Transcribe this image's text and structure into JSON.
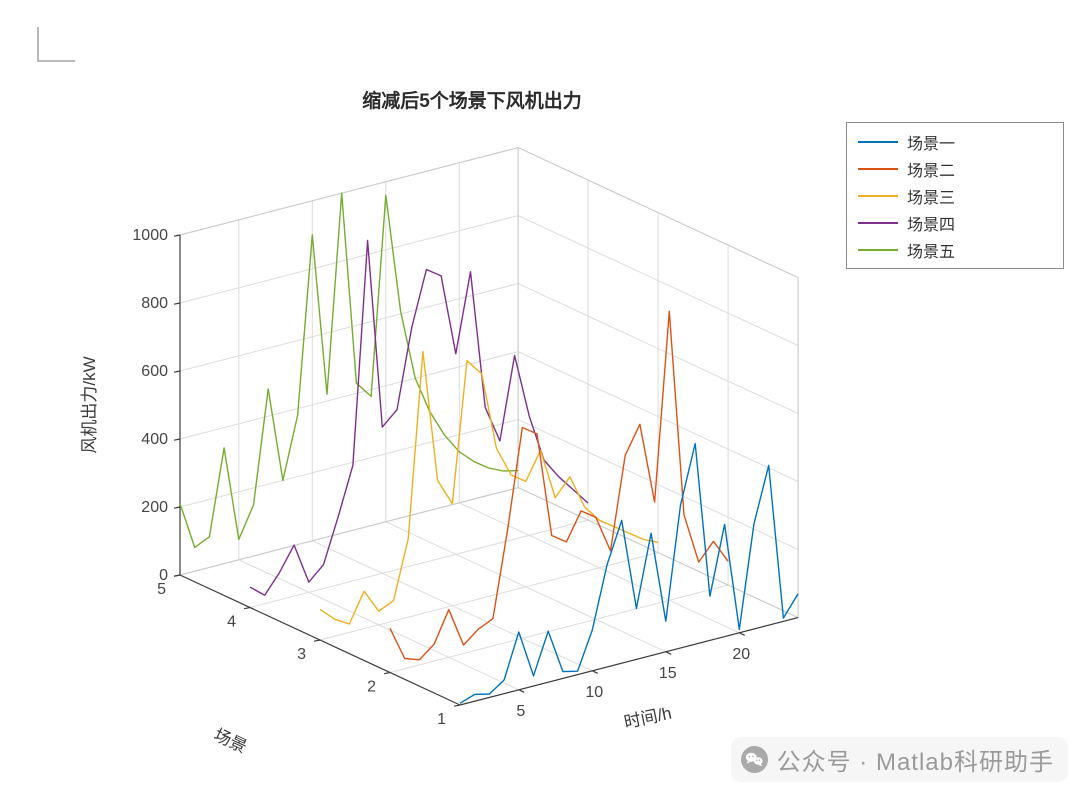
{
  "page": {
    "watermark": {
      "text": "公众号 · Matlab科研助手",
      "icon": "wechat-icon"
    }
  },
  "chart_data": {
    "type": "line",
    "projection": "3d",
    "view": {
      "azimuth": -37.5,
      "elevation": 30
    },
    "grid": true,
    "title": "缩减后5个场景下风机出力",
    "xlabel": "时间/h",
    "ylabel": "场景",
    "zlabel": "风机出力/kW",
    "xlim": [
      1,
      24
    ],
    "ylim": [
      1,
      5
    ],
    "zlim": [
      0,
      1000
    ],
    "xticks": [
      5,
      10,
      15,
      20
    ],
    "yticks": [
      1,
      2,
      3,
      4,
      5
    ],
    "zticks": [
      0,
      200,
      400,
      600,
      800,
      1000
    ],
    "legend_position": "northeast-outside",
    "x": [
      1,
      2,
      3,
      4,
      5,
      6,
      7,
      8,
      9,
      10,
      11,
      12,
      13,
      14,
      15,
      16,
      17,
      18,
      19,
      20,
      21,
      22,
      23,
      24
    ],
    "series": [
      {
        "name": "场景一",
        "scenario": 1,
        "color": "#0072BD",
        "values": [
          5,
          20,
          10,
          40,
          170,
          30,
          150,
          20,
          10,
          120,
          300,
          420,
          150,
          360,
          90,
          420,
          590,
          130,
          330,
          10,
          310,
          470,
          10,
          70
        ]
      },
      {
        "name": "场景二",
        "scenario": 2,
        "color": "#D95319",
        "values": [
          130,
          30,
          15,
          50,
          140,
          25,
          60,
          80,
          330,
          620,
          590,
          280,
          250,
          330,
          300,
          190,
          460,
          540,
          300,
          850,
          240,
          90,
          140,
          70
        ]
      },
      {
        "name": "场景三",
        "scenario": 3,
        "color": "#EDB120",
        "values": [
          90,
          50,
          25,
          110,
          40,
          60,
          230,
          770,
          380,
          300,
          710,
          660,
          430,
          340,
          310,
          390,
          240,
          290,
          190,
          140,
          110,
          80,
          50,
          30
        ]
      },
      {
        "name": "场景四",
        "scenario": 4,
        "color": "#7E2F8E",
        "values": [
          60,
          25,
          80,
          150,
          30,
          70,
          200,
          340,
          990,
          430,
          470,
          700,
          860,
          830,
          590,
          820,
          410,
          300,
          540,
          350,
          210,
          150,
          100,
          50
        ]
      },
      {
        "name": "场景五",
        "scenario": 5,
        "color": "#77AC30",
        "values": [
          210,
          70,
          90,
          340,
          60,
          150,
          480,
          200,
          380,
          900,
          420,
          1000,
          430,
          380,
          960,
          610,
          400,
          290,
          210,
          150,
          110,
          80,
          60,
          50
        ]
      }
    ]
  }
}
